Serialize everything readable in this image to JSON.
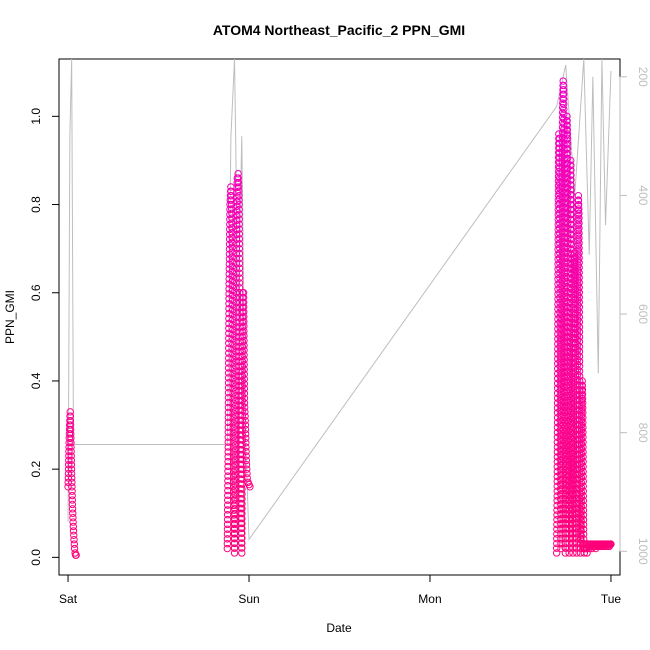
{
  "chart_data": {
    "type": "scatter",
    "title": "ATOM4 Northeast_Pacific_2 PPN_GMI",
    "xlabel": "Date",
    "ylabel": "PPN_GMI",
    "x_ticks": [
      "Sat",
      "Sun",
      "Mon",
      "Tue"
    ],
    "y_ticks": [
      "0.0",
      "0.2",
      "0.4",
      "0.6",
      "0.8",
      "1.0"
    ],
    "y_range": [
      -0.04,
      1.13
    ],
    "y2_label": "",
    "y2_ticks": [
      "200",
      "400",
      "600",
      "800",
      "1000"
    ],
    "y2_range": [
      1040,
      170
    ],
    "x_range_days": [
      -0.05,
      3.05
    ],
    "grid": false,
    "legend": "none",
    "point_style": "open circle",
    "colors": {
      "points_low": "#e00080",
      "points_high": "#ff40c0",
      "pressure_line": "#bebebe",
      "axis": "#000000",
      "right_axis": "#bebebe"
    },
    "series": [
      {
        "role": "points",
        "segments": [
          {
            "x": [
              0.0,
              0.003,
              0.006,
              0.009,
              0.012,
              0.015,
              0.018,
              0.021,
              0.024,
              0.027,
              0.03,
              0.033,
              0.036,
              0.039,
              0.042,
              0.045
            ],
            "y": [
              0.16,
              0.2,
              0.26,
              0.3,
              0.33,
              0.28,
              0.22,
              0.17,
              0.12,
              0.09,
              0.06,
              0.04,
              0.02,
              0.01,
              0.005,
              0.005
            ]
          },
          {
            "x": [
              0.88,
              0.885,
              0.89,
              0.895,
              0.9,
              0.905,
              0.91,
              0.915,
              0.92,
              0.925,
              0.93,
              0.935,
              0.94,
              0.945,
              0.95,
              0.955,
              0.96,
              0.965,
              0.97,
              0.975,
              0.98,
              0.985,
              0.99,
              0.995,
              1.0,
              1.005
            ],
            "y": [
              0.02,
              0.25,
              0.62,
              0.8,
              0.84,
              0.78,
              0.55,
              0.15,
              0.01,
              0.3,
              0.7,
              0.86,
              0.87,
              0.8,
              0.5,
              0.1,
              0.01,
              0.6,
              0.6,
              0.35,
              0.3,
              0.22,
              0.18,
              0.17,
              0.165,
              0.16
            ]
          },
          {
            "x": [
              2.7,
              2.703,
              2.706,
              2.709,
              2.712,
              2.715,
              2.718,
              2.721,
              2.724,
              2.727,
              2.73,
              2.733,
              2.736,
              2.739,
              2.742,
              2.745,
              2.748,
              2.751,
              2.754,
              2.757,
              2.76,
              2.763,
              2.766,
              2.769,
              2.772,
              2.775,
              2.778,
              2.781,
              2.784,
              2.787,
              2.79,
              2.793,
              2.796,
              2.799,
              2.802,
              2.805,
              2.808,
              2.811,
              2.814,
              2.817,
              2.82,
              2.823,
              2.826,
              2.829,
              2.832,
              2.835,
              2.838,
              2.841,
              2.844,
              2.847,
              2.85,
              2.853,
              2.856,
              2.859,
              2.862,
              2.865,
              2.868,
              2.871,
              2.874,
              2.877,
              2.88,
              2.883,
              2.886,
              2.889,
              2.892,
              2.895,
              2.898,
              2.901,
              2.904,
              2.907,
              2.91,
              2.913,
              2.916,
              2.919,
              2.922,
              2.925,
              2.928,
              2.931,
              2.934,
              2.937,
              2.94,
              2.943,
              2.946,
              2.949,
              2.952,
              2.955,
              2.958,
              2.961,
              2.964,
              2.967,
              2.97,
              2.973,
              2.976,
              2.979,
              2.982,
              2.985,
              2.988,
              2.991,
              2.994,
              2.997,
              3.0
            ],
            "y": [
              0.01,
              0.15,
              0.45,
              0.8,
              0.96,
              0.95,
              0.6,
              0.2,
              0.02,
              0.35,
              0.75,
              1.02,
              1.08,
              1.05,
              0.7,
              0.25,
              0.01,
              0.4,
              0.85,
              1.0,
              0.95,
              0.6,
              0.15,
              0.01,
              0.3,
              0.7,
              0.9,
              0.8,
              0.45,
              0.1,
              0.01,
              0.25,
              0.6,
              0.69,
              0.65,
              0.4,
              0.1,
              0.01,
              0.2,
              0.55,
              0.82,
              0.78,
              0.5,
              0.2,
              0.01,
              0.05,
              0.3,
              0.4,
              0.35,
              0.15,
              0.02,
              0.01,
              0.03,
              0.02,
              0.03,
              0.02,
              0.01,
              0.03,
              0.025,
              0.03,
              0.02,
              0.03,
              0.025,
              0.03,
              0.03,
              0.02,
              0.025,
              0.03,
              0.03,
              0.025,
              0.03,
              0.025,
              0.02,
              0.03,
              0.025,
              0.03,
              0.025,
              0.03,
              0.03,
              0.025,
              0.03,
              0.025,
              0.03,
              0.03,
              0.025,
              0.03,
              0.025,
              0.03,
              0.025,
              0.03,
              0.03,
              0.025,
              0.03,
              0.03,
              0.025,
              0.03,
              0.03,
              0.025,
              0.03,
              0.03,
              0.03
            ]
          }
        ]
      },
      {
        "role": "pressure_line",
        "axis": "right",
        "x": [
          0.0,
          0.01,
          0.02,
          0.03,
          0.88,
          0.9,
          0.92,
          0.94,
          0.96,
          0.98,
          1.0,
          2.7,
          2.75,
          2.8,
          2.85,
          2.88,
          2.9,
          2.93,
          2.95,
          2.97,
          3.0
        ],
        "y": [
          950,
          300,
          170,
          820,
          820,
          300,
          170,
          600,
          300,
          800,
          980,
          250,
          180,
          400,
          170,
          500,
          200,
          700,
          170,
          450,
          190
        ]
      }
    ]
  }
}
